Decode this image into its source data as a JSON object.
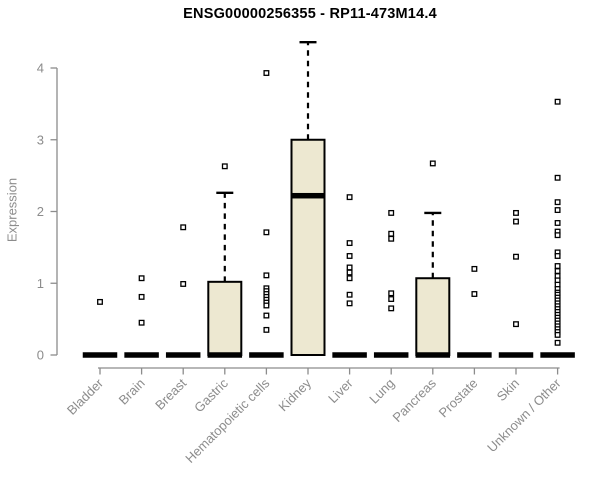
{
  "chart_data": {
    "type": "boxplot",
    "title": "ENSG00000256355 - RP11-473M14.4",
    "ylabel": "Expression",
    "xlabel": "",
    "ylim": [
      0,
      4.4
    ],
    "y_ticks": [
      0,
      1,
      2,
      3,
      4
    ],
    "grid": false,
    "legend": "none",
    "categories": [
      "Bladder",
      "Brain",
      "Breast",
      "Gastric",
      "Hematopoietic cells",
      "Kidney",
      "Liver",
      "Lung",
      "Pancreas",
      "Prostate",
      "Skin",
      "Unknown / Other"
    ],
    "boxes": [
      {
        "label": "Bladder",
        "q1": 0,
        "median": 0,
        "q3": 0,
        "whisker_low": 0,
        "whisker_high": 0,
        "outliers": [
          0.74
        ]
      },
      {
        "label": "Brain",
        "q1": 0,
        "median": 0,
        "q3": 0,
        "whisker_low": 0,
        "whisker_high": 0,
        "outliers": [
          1.07,
          0.81,
          0.45
        ]
      },
      {
        "label": "Breast",
        "q1": 0,
        "median": 0,
        "q3": 0,
        "whisker_low": 0,
        "whisker_high": 0,
        "outliers": [
          1.78,
          0.99
        ]
      },
      {
        "label": "Gastric",
        "q1": 0,
        "median": 0,
        "q3": 1.02,
        "whisker_low": 0,
        "whisker_high": 2.26,
        "outliers": [
          2.63
        ]
      },
      {
        "label": "Hematopoietic cells",
        "q1": 0,
        "median": 0,
        "q3": 0,
        "whisker_low": 0,
        "whisker_high": 0,
        "outliers": [
          3.93,
          1.71,
          1.11,
          0.93,
          0.89,
          0.85,
          0.81,
          0.77,
          0.73,
          0.69,
          0.55,
          0.35
        ]
      },
      {
        "label": "Kidney",
        "q1": 0,
        "median": 2.22,
        "q3": 3.0,
        "whisker_low": 0,
        "whisker_high": 4.36,
        "outliers": []
      },
      {
        "label": "Liver",
        "q1": 0,
        "median": 0,
        "q3": 0,
        "whisker_low": 0,
        "whisker_high": 0,
        "outliers": [
          2.2,
          1.56,
          1.38,
          1.22,
          1.15,
          1.07,
          0.84,
          0.72
        ]
      },
      {
        "label": "Lung",
        "q1": 0,
        "median": 0,
        "q3": 0,
        "whisker_low": 0,
        "whisker_high": 0,
        "outliers": [
          1.98,
          1.69,
          1.62,
          0.86,
          0.78,
          0.65
        ]
      },
      {
        "label": "Pancreas",
        "q1": 0,
        "median": 0,
        "q3": 1.07,
        "whisker_low": 0,
        "whisker_high": 1.98,
        "outliers": [
          2.67
        ]
      },
      {
        "label": "Prostate",
        "q1": 0,
        "median": 0,
        "q3": 0,
        "whisker_low": 0,
        "whisker_high": 0,
        "outliers": [
          1.2,
          0.85
        ]
      },
      {
        "label": "Skin",
        "q1": 0,
        "median": 0,
        "q3": 0,
        "whisker_low": 0,
        "whisker_high": 0,
        "outliers": [
          1.98,
          1.86,
          1.37,
          0.43
        ]
      },
      {
        "label": "Unknown / Other",
        "q1": 0,
        "median": 0,
        "q3": 0,
        "whisker_low": 0,
        "whisker_high": 0,
        "outliers": [
          3.53,
          2.47,
          2.13,
          2.02,
          1.84,
          1.72,
          1.67,
          1.43,
          1.38,
          1.24,
          1.17,
          1.1,
          1.04,
          0.98,
          0.92,
          0.87,
          0.84,
          0.8,
          0.76,
          0.72,
          0.68,
          0.64,
          0.6,
          0.56,
          0.52,
          0.48,
          0.44,
          0.4,
          0.36,
          0.32,
          0.28,
          0.17
        ]
      }
    ],
    "colors": {
      "background": "#ffffff",
      "box_fill": "#ede8d1",
      "box_border": "#000000",
      "median": "#000000",
      "whisker": "#000000",
      "outlier_stroke": "#000000",
      "outlier_fill": "#ffffff",
      "axis": "#8c8c8c",
      "tick_label": "#8c8c8c",
      "title": "#000000"
    }
  }
}
